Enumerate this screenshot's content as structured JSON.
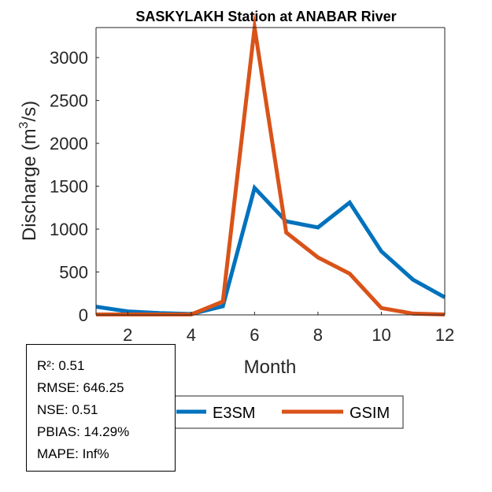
{
  "chart_data": {
    "type": "line",
    "title": "SASKYLAKH  Station at  ANABAR  River",
    "xlabel": "Month",
    "ylabel_main": "Discharge (m",
    "ylabel_sup": "3",
    "ylabel_tail": "/s)",
    "xlim": [
      1,
      12
    ],
    "ylim": [
      0,
      3350
    ],
    "xticks": [
      2,
      4,
      6,
      8,
      10,
      12
    ],
    "yticks": [
      0,
      500,
      1000,
      1500,
      2000,
      2500,
      3000
    ],
    "x": [
      1,
      2,
      3,
      4,
      5,
      6,
      7,
      8,
      9,
      10,
      11,
      12
    ],
    "series": [
      {
        "name": "E3SM",
        "color": "#0072BD",
        "values": [
          95,
          40,
          20,
          10,
          100,
          1480,
          1090,
          1020,
          1310,
          740,
          410,
          205
        ]
      },
      {
        "name": "GSIM",
        "color": "#D95319",
        "values": [
          5,
          5,
          5,
          5,
          155,
          3350,
          960,
          670,
          480,
          80,
          15,
          5
        ]
      }
    ]
  },
  "stats": {
    "r2": "R²: 0.51",
    "rmse": "RMSE: 646.25",
    "nse": "NSE: 0.51",
    "pbias": "PBIAS: 14.29%",
    "mape": "MAPE: Inf%"
  }
}
